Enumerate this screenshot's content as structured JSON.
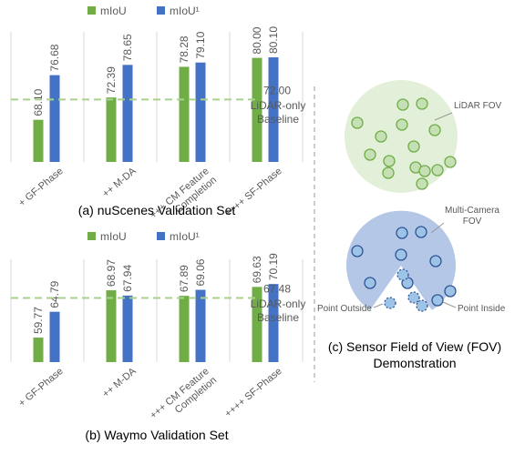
{
  "chart_data": [
    {
      "type": "bar",
      "caption": "(a) nuScenes Validation Set",
      "categories": [
        "+ GF-Phase",
        "++ M-DA",
        "+++ CM Feature Completion",
        "++++ SF-Phase"
      ],
      "series": [
        {
          "name": "mIoU",
          "color": "#70ad47",
          "values": [
            68.1,
            72.39,
            78.28,
            80.0
          ],
          "value_labels": [
            "68.10",
            "72.39",
            "78.28",
            "80.00"
          ]
        },
        {
          "name": "mIoU¹",
          "color": "#4472c4",
          "values": [
            76.68,
            78.65,
            79.1,
            80.1
          ],
          "value_labels": [
            "76.68",
            "78.65",
            "79.10",
            "80.10"
          ]
        }
      ],
      "ylim": [
        60,
        85
      ],
      "baseline": {
        "value": 72.0,
        "value_label": "72.00",
        "label": "LiDAR-only Baseline",
        "color": "#a9d18e"
      }
    },
    {
      "type": "bar",
      "caption": "(b) Waymo Validation Set",
      "categories": [
        "+ GF-Phase",
        "++ M-DA",
        "+++ CM Feature Completion",
        "++++ SF-Phase"
      ],
      "series": [
        {
          "name": "mIoU",
          "color": "#70ad47",
          "values": [
            59.77,
            68.97,
            67.89,
            69.63
          ]
        },
        {
          "name": "mIoU¹",
          "color": "#4472c4",
          "values": [
            64.79,
            67.94,
            69.06,
            70.19
          ]
        }
      ],
      "ylim": [
        55,
        75
      ],
      "baseline": {
        "value": 67.48,
        "label": "LiDAR-only Baseline",
        "color": "#a9d18e"
      }
    }
  ],
  "diagram": {
    "caption": "(c) Sensor Field of View (FOV) Demonstration",
    "lidar_label": "LiDAR FOV",
    "camera_label": "Multi-Camera FOV",
    "outside_label": "Point Outside",
    "inside_label": "Point Inside"
  }
}
